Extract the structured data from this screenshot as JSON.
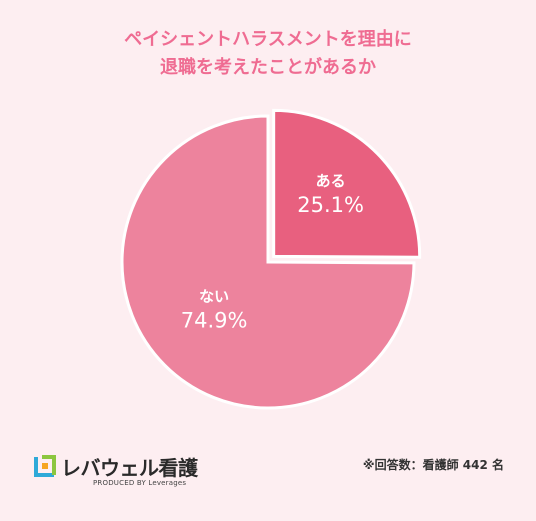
{
  "title_lines": [
    "ペイシェントハラスメントを理由に",
    "退職を考えたことがあるか"
  ],
  "chart_data": {
    "type": "pie",
    "slices": [
      {
        "label": "ある",
        "value": 25.1,
        "value_text": "25.1%",
        "color": "#e8607f"
      },
      {
        "label": "ない",
        "value": 74.9,
        "value_text": "74.9%",
        "color": "#ed839d"
      }
    ]
  },
  "footer": {
    "note": "※回答数：看護師 442 名",
    "logo_main": "レバウェル看護",
    "logo_sub": "PRODUCED BY Leverages"
  },
  "colors": {
    "background": "#fdeef1",
    "title": "#ef6c92"
  }
}
